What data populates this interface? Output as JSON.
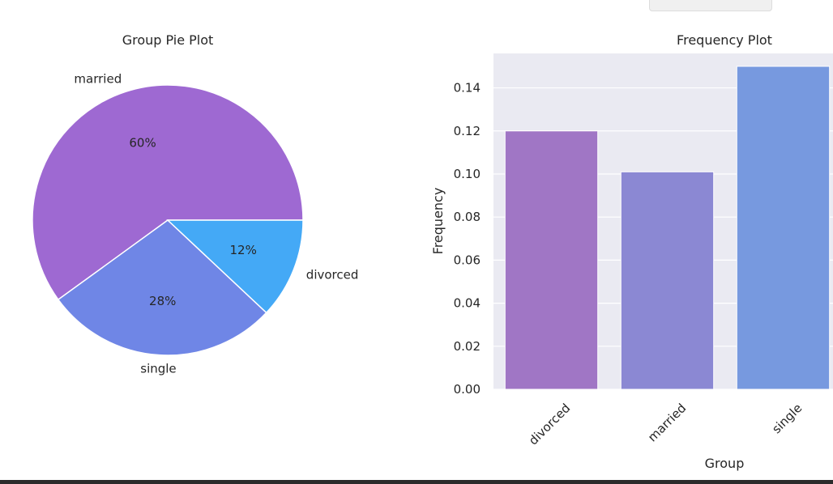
{
  "chart_data": [
    {
      "type": "pie",
      "title": "Group Pie Plot",
      "slices": [
        {
          "label": "married",
          "value": 60,
          "pct_label": "60%",
          "color": "#9e69d2"
        },
        {
          "label": "single",
          "value": 28,
          "pct_label": "28%",
          "color": "#6f86e6"
        },
        {
          "label": "divorced",
          "value": 12,
          "pct_label": "12%",
          "color": "#44a9f6"
        }
      ]
    },
    {
      "type": "bar",
      "title": "Frequency Plot",
      "xlabel": "Group",
      "ylabel": "Frequency",
      "categories": [
        "divorced",
        "married",
        "single"
      ],
      "values": [
        0.12,
        0.101,
        0.15
      ],
      "colors": [
        "#a076c5",
        "#8b88d3",
        "#7799df"
      ],
      "ylim": [
        0,
        0.156
      ],
      "yticks": [
        "0.00",
        "0.02",
        "0.04",
        "0.06",
        "0.08",
        "0.10",
        "0.12",
        "0.14"
      ],
      "grid": true,
      "background": "#eaeaf2"
    }
  ]
}
